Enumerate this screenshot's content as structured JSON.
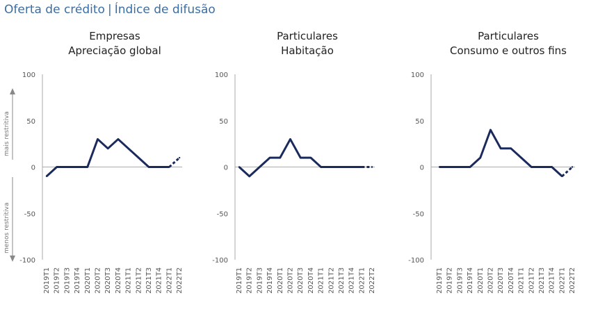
{
  "header": {
    "title": "Oferta de crédito",
    "separator": "|",
    "subtitle": "Índice de difusão"
  },
  "annotations": {
    "up": "mais restritiva",
    "down": "menos restritiva"
  },
  "colors": {
    "header": "#3a6ea5",
    "line": "#1b2a5c",
    "axis": "#aaaaaa"
  },
  "chart_data": [
    {
      "type": "line",
      "title": "Empresas",
      "subtitle": "Apreciação global",
      "x": [
        "2019T1",
        "2019T2",
        "2019T3",
        "2019T4",
        "2020T1",
        "2020T2",
        "2020T3",
        "2020T4",
        "2021T1",
        "2021T2",
        "2021T3",
        "2021T4",
        "2022T1",
        "2022T2"
      ],
      "values": [
        -10,
        0,
        0,
        0,
        0,
        30,
        20,
        30,
        20,
        10,
        0,
        0,
        0,
        10
      ],
      "dashed_from_index": 12,
      "ylim": [
        -100,
        100
      ],
      "yticks": [
        100,
        50,
        0,
        -50,
        -100
      ]
    },
    {
      "type": "line",
      "title": "Particulares",
      "subtitle": "Habitação",
      "x": [
        "2019T1",
        "2019T2",
        "2019T3",
        "2019T4",
        "2020T1",
        "2020T2",
        "2020T3",
        "2020T4",
        "2021T1",
        "2021T2",
        "2021T3",
        "2021T4",
        "2022T1",
        "2022T2"
      ],
      "values": [
        0,
        -10,
        0,
        10,
        10,
        30,
        10,
        10,
        0,
        0,
        0,
        0,
        0,
        0
      ],
      "dashed_from_index": 12,
      "ylim": [
        -100,
        100
      ],
      "yticks": [
        100,
        50,
        0,
        -50,
        -100
      ]
    },
    {
      "type": "line",
      "title": "Particulares",
      "subtitle": "Consumo e outros fins",
      "x": [
        "2019T1",
        "2019T2",
        "2019T3",
        "2019T4",
        "2020T1",
        "2020T2",
        "2020T3",
        "2020T4",
        "2021T1",
        "2021T2",
        "2021T3",
        "2021T4",
        "2022T1",
        "2022T2"
      ],
      "values": [
        0,
        0,
        0,
        0,
        10,
        40,
        20,
        20,
        10,
        0,
        0,
        0,
        -10,
        0
      ],
      "dashed_from_index": 12,
      "ylim": [
        -100,
        100
      ],
      "yticks": [
        100,
        50,
        0,
        -50,
        -100
      ]
    }
  ]
}
